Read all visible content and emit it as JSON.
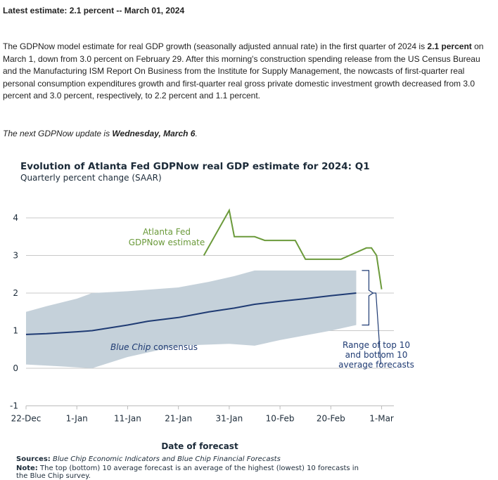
{
  "headline": "Latest estimate: 2.1 percent -- March 01, 2024",
  "paragraph": {
    "part1": "The GDPNow model estimate for real GDP growth (seasonally adjusted annual rate) in the first quarter of 2024 is ",
    "bold": "2.1 percent",
    "part2": " on March 1, down from 3.0 percent on February 29. After this morning's construction spending release from the US Census Bureau and the Manufacturing ISM Report On Business from the Institute for Supply Management, the nowcasts of first-quarter real personal consumption expenditures growth and first-quarter real gross private domestic investment growth decreased from 3.0 percent and 3.0 percent, respectively, to 2.2 percent and 1.1 percent."
  },
  "next_update": {
    "prefix": "The next GDPNow update is ",
    "date": "Wednesday, March 6",
    "suffix": "."
  },
  "chart_data": {
    "type": "line",
    "title": "Evolution of Atlanta Fed GDPNow real GDP estimate for 2024: Q1",
    "subtitle": "Quarterly percent change (SAAR)",
    "xlabel": "Date of forecast",
    "ylabel": "",
    "ylim": [
      -1,
      4.5
    ],
    "yticks": [
      -1,
      0,
      1,
      2,
      3,
      4
    ],
    "xrange": [
      "2023-12-22",
      "2024-03-03"
    ],
    "xticks": [
      {
        "date": "2023-12-22",
        "label": "22-Dec"
      },
      {
        "date": "2024-01-01",
        "label": "1-Jan"
      },
      {
        "date": "2024-01-11",
        "label": "11-Jan"
      },
      {
        "date": "2024-01-21",
        "label": "21-Jan"
      },
      {
        "date": "2024-01-31",
        "label": "31-Jan"
      },
      {
        "date": "2024-02-10",
        "label": "10-Feb"
      },
      {
        "date": "2024-02-20",
        "label": "20-Feb"
      },
      {
        "date": "2024-03-01",
        "label": "1-Mar"
      }
    ],
    "grid": true,
    "series": [
      {
        "name": "Atlanta Fed GDPNow estimate",
        "label": "Atlanta Fed\nGDPNow estimate",
        "kind": "line",
        "color": "#6b9a3b",
        "points": [
          [
            "2024-01-26",
            3.0
          ],
          [
            "2024-01-31",
            4.2
          ],
          [
            "2024-02-01",
            3.5
          ],
          [
            "2024-02-03",
            3.5
          ],
          [
            "2024-02-05",
            3.5
          ],
          [
            "2024-02-07",
            3.4
          ],
          [
            "2024-02-10",
            3.4
          ],
          [
            "2024-02-13",
            3.4
          ],
          [
            "2024-02-15",
            2.9
          ],
          [
            "2024-02-20",
            2.9
          ],
          [
            "2024-02-22",
            2.9
          ],
          [
            "2024-02-27",
            3.2
          ],
          [
            "2024-02-28",
            3.2
          ],
          [
            "2024-02-29",
            3.0
          ],
          [
            "2024-03-01",
            2.1
          ]
        ]
      },
      {
        "name": "Blue Chip consensus",
        "kind": "line",
        "color": "#1f3b73",
        "points": [
          [
            "2023-12-22",
            0.9
          ],
          [
            "2023-12-26",
            0.92
          ],
          [
            "2024-01-01",
            0.97
          ],
          [
            "2024-01-04",
            1.0
          ],
          [
            "2024-01-11",
            1.15
          ],
          [
            "2024-01-15",
            1.25
          ],
          [
            "2024-01-21",
            1.35
          ],
          [
            "2024-01-27",
            1.5
          ],
          [
            "2024-02-01",
            1.6
          ],
          [
            "2024-02-05",
            1.7
          ],
          [
            "2024-02-10",
            1.78
          ],
          [
            "2024-02-15",
            1.85
          ],
          [
            "2024-02-20",
            1.93
          ],
          [
            "2024-02-25",
            2.0
          ]
        ]
      },
      {
        "name": "Range of top 10 and bottom 10 average forecasts",
        "label": "Range of top 10\nand bottom 10\naverage forecasts",
        "kind": "band",
        "color": "#c5d1da",
        "upper": [
          [
            "2023-12-22",
            1.5
          ],
          [
            "2023-12-26",
            1.65
          ],
          [
            "2024-01-01",
            1.85
          ],
          [
            "2024-01-04",
            2.0
          ],
          [
            "2024-01-11",
            2.05
          ],
          [
            "2024-01-21",
            2.15
          ],
          [
            "2024-01-27",
            2.3
          ],
          [
            "2024-02-01",
            2.45
          ],
          [
            "2024-02-05",
            2.6
          ],
          [
            "2024-02-25",
            2.6
          ]
        ],
        "lower": [
          [
            "2023-12-22",
            0.1
          ],
          [
            "2023-12-29",
            0.05
          ],
          [
            "2024-01-04",
            0.0
          ],
          [
            "2024-01-11",
            0.3
          ],
          [
            "2024-01-21",
            0.6
          ],
          [
            "2024-01-31",
            0.65
          ],
          [
            "2024-02-05",
            0.6
          ],
          [
            "2024-02-10",
            0.75
          ],
          [
            "2024-02-20",
            1.0
          ],
          [
            "2024-02-25",
            1.15
          ]
        ]
      }
    ],
    "sources": {
      "label": "Sources:",
      "text": "Blue Chip Economic Indicators and Blue Chip Financial Forecasts"
    },
    "note": {
      "label": "Note:",
      "text": "The top (bottom) 10 average forecast is an average of the highest (lowest) 10 forecasts in the Blue Chip survey."
    }
  }
}
